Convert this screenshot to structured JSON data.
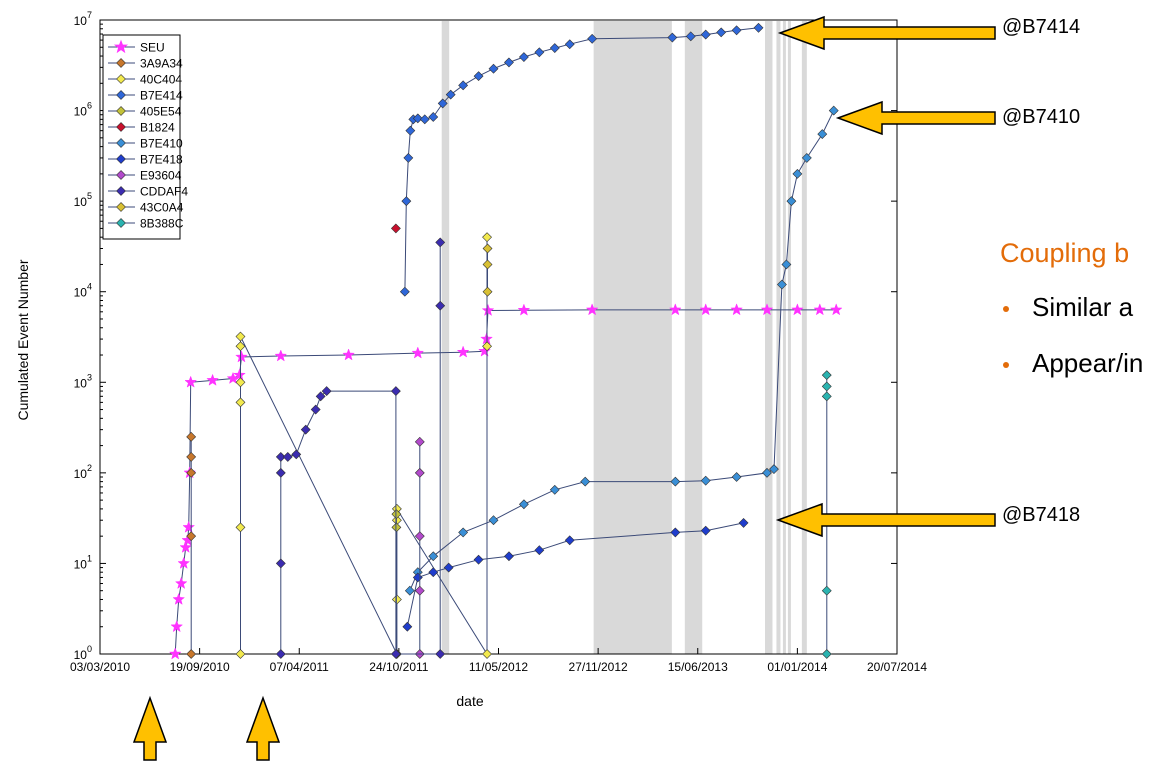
{
  "colors": {
    "accent": "#E36C09",
    "arrow_fill": "#FFC000",
    "shade": "#D9D9D9",
    "series": {
      "SEU": "#FF33FF",
      "3A9A34": "#C7772C",
      "40C404": "#F2E94E",
      "B7E414": "#2F67D8",
      "405E54": "#C3C23A",
      "B1824": "#C8102E",
      "B7E410": "#3A8FD6",
      "B7E418": "#1F3DCC",
      "E93604": "#B24ACB",
      "CDDAF4": "#3B2CB0",
      "43C0A4": "#D8C034",
      "8B388C": "#2BB3B0"
    }
  },
  "callouts": [
    {
      "text": "@B7414"
    },
    {
      "text": "@B7410"
    },
    {
      "text": "@B7418"
    }
  ],
  "annotation": {
    "heading": "Coupling b",
    "bullets": [
      "Similar a",
      "Appear/in"
    ]
  },
  "chart_data": {
    "type": "scatter",
    "xlabel": "date",
    "ylabel": "Cumulated Event Number",
    "yscale": "log",
    "ylim": [
      1,
      10000000
    ],
    "xlim": [
      "2010-03-03",
      "2014-07-20"
    ],
    "x_tick_labels": [
      "03/03/2010",
      "19/09/2010",
      "07/04/2011",
      "24/10/2011",
      "11/05/2012",
      "27/11/2012",
      "15/06/2013",
      "01/01/2014",
      "20/07/2014"
    ],
    "y_tick_labels": [
      {
        "base": "10",
        "exp": "0"
      },
      {
        "base": "10",
        "exp": "1"
      },
      {
        "base": "10",
        "exp": "2"
      },
      {
        "base": "10",
        "exp": "3"
      },
      {
        "base": "10",
        "exp": "4"
      },
      {
        "base": "10",
        "exp": "5"
      },
      {
        "base": "10",
        "exp": "6"
      },
      {
        "base": "10",
        "exp": "7"
      }
    ],
    "grid": false,
    "legend_position": "top-left",
    "shaded_periods": [
      [
        "2012-01-18",
        "2012-02-02"
      ],
      [
        "2012-11-18",
        "2013-04-24"
      ],
      [
        "2013-05-20",
        "2013-06-24"
      ],
      [
        "2013-10-28",
        "2013-11-12"
      ],
      [
        "2013-11-20",
        "2013-11-28"
      ],
      [
        "2013-12-03",
        "2013-12-08"
      ],
      [
        "2013-12-13",
        "2013-12-18"
      ],
      [
        "2014-01-10",
        "2014-01-20"
      ]
    ],
    "series": [
      {
        "name": "SEU",
        "marker": "star",
        "x": [
          "2010-08-01",
          "2010-08-04",
          "2010-08-08",
          "2010-08-13",
          "2010-08-18",
          "2010-08-22",
          "2010-08-26",
          "2010-08-28",
          "2010-08-30",
          "2010-09-01",
          "2010-10-15",
          "2010-11-25",
          "2010-12-08",
          "2010-12-12",
          "2011-03-01",
          "2011-07-15",
          "2011-12-01",
          "2012-03-01",
          "2012-04-13",
          "2012-04-17",
          "2012-04-20",
          "2012-07-01",
          "2012-11-15",
          "2013-05-01",
          "2013-07-01",
          "2013-09-01",
          "2013-11-01",
          "2014-01-01",
          "2014-02-15",
          "2014-03-20"
        ],
        "y": [
          1,
          2,
          4,
          6,
          10,
          15,
          18,
          25,
          100,
          1000,
          1050,
          1100,
          1200,
          1900,
          1950,
          2000,
          2100,
          2150,
          2200,
          3000,
          6200,
          6250,
          6300,
          6300,
          6300,
          6300,
          6300,
          6300,
          6300,
          6300
        ]
      },
      {
        "name": "3A9A34",
        "marker": "diamond",
        "x": [
          "2010-09-02",
          "2010-09-02",
          "2010-09-02",
          "2010-09-02",
          "2010-09-02"
        ],
        "y": [
          1,
          20,
          100,
          150,
          250
        ]
      },
      {
        "name": "40C404",
        "marker": "diamond",
        "x": [
          "2010-12-10",
          "2010-12-10",
          "2010-12-10",
          "2010-12-10",
          "2010-12-10",
          "2010-12-10",
          "2011-10-20",
          "2011-10-20",
          "2011-10-20",
          "2011-10-20",
          "2012-04-18",
          "2012-04-18",
          "2012-04-18"
        ],
        "y": [
          1,
          25,
          600,
          1000,
          2500,
          3200,
          1,
          4,
          30,
          40,
          1,
          2500,
          40000
        ]
      },
      {
        "name": "B7E414",
        "marker": "diamond",
        "x": [
          "2011-11-05",
          "2011-11-08",
          "2011-11-12",
          "2011-11-16",
          "2011-11-22",
          "2011-12-01",
          "2011-12-15",
          "2012-01-01",
          "2012-01-20",
          "2012-02-05",
          "2012-03-01",
          "2012-04-01",
          "2012-05-01",
          "2012-06-01",
          "2012-07-01",
          "2012-08-01",
          "2012-09-01",
          "2012-10-01",
          "2012-11-15",
          "2013-04-25",
          "2013-06-01",
          "2013-07-01",
          "2013-08-01",
          "2013-09-01",
          "2013-10-15"
        ],
        "y": [
          10000,
          100000,
          300000,
          600000,
          800000,
          820000,
          800000,
          850000,
          1200000,
          1500000,
          1900000,
          2400000,
          2900000,
          3400000,
          3900000,
          4400000,
          4900000,
          5400000,
          6200000,
          6400000,
          6600000,
          6900000,
          7300000,
          7700000,
          8200000
        ]
      },
      {
        "name": "405E54",
        "marker": "diamond",
        "x": [
          "2011-10-19",
          "2011-10-19",
          "2011-10-19"
        ],
        "y": [
          1,
          25,
          35
        ]
      },
      {
        "name": "B1824",
        "marker": "diamond",
        "x": [
          "2011-10-18"
        ],
        "y": [
          50000
        ]
      },
      {
        "name": "B7E410",
        "marker": "diamond",
        "x": [
          "2011-11-15",
          "2011-12-01",
          "2012-01-01",
          "2012-03-01",
          "2012-05-01",
          "2012-07-01",
          "2012-09-01",
          "2012-11-01",
          "2013-05-01",
          "2013-07-01",
          "2013-09-01",
          "2013-11-01",
          "2013-11-15",
          "2013-12-01",
          "2013-12-10",
          "2013-12-20",
          "2014-01-01",
          "2014-01-20",
          "2014-02-20",
          "2014-03-15"
        ],
        "y": [
          5,
          8,
          12,
          22,
          30,
          45,
          65,
          80,
          80,
          82,
          90,
          100,
          110,
          12000,
          20000,
          100000,
          200000,
          300000,
          550000,
          1000000
        ]
      },
      {
        "name": "B7E418",
        "marker": "diamond",
        "x": [
          "2011-11-10",
          "2011-12-01",
          "2012-01-01",
          "2012-02-01",
          "2012-04-01",
          "2012-06-01",
          "2012-08-01",
          "2012-10-01",
          "2013-05-01",
          "2013-07-01",
          "2013-09-15"
        ],
        "y": [
          2,
          7,
          8,
          9,
          11,
          12,
          14,
          18,
          22,
          23,
          28
        ]
      },
      {
        "name": "E93604",
        "marker": "diamond",
        "x": [
          "2011-12-05",
          "2011-12-05",
          "2011-12-05",
          "2011-12-05",
          "2011-12-05"
        ],
        "y": [
          1,
          5,
          20,
          100,
          220
        ]
      },
      {
        "name": "CDDAF4",
        "marker": "diamond",
        "x": [
          "2011-03-01",
          "2011-03-01",
          "2011-03-01",
          "2011-03-01",
          "2011-03-15",
          "2011-04-01",
          "2011-04-20",
          "2011-05-10",
          "2011-05-20",
          "2011-06-01",
          "2011-10-18",
          "2011-10-18",
          "2012-01-15",
          "2012-01-15",
          "2012-01-15"
        ],
        "y": [
          1,
          10,
          100,
          150,
          150,
          160,
          300,
          500,
          700,
          800,
          800,
          1,
          1,
          7000,
          35000
        ]
      },
      {
        "name": "43C0A4",
        "marker": "diamond",
        "x": [
          "2012-04-19",
          "2012-04-19",
          "2012-04-19"
        ],
        "y": [
          10000,
          20000,
          30000
        ]
      },
      {
        "name": "8B388C",
        "marker": "diamond",
        "x": [
          "2014-03-01",
          "2014-03-01",
          "2014-03-01",
          "2014-03-01",
          "2014-03-01"
        ],
        "y": [
          1,
          5,
          700,
          900,
          1200
        ]
      }
    ]
  }
}
